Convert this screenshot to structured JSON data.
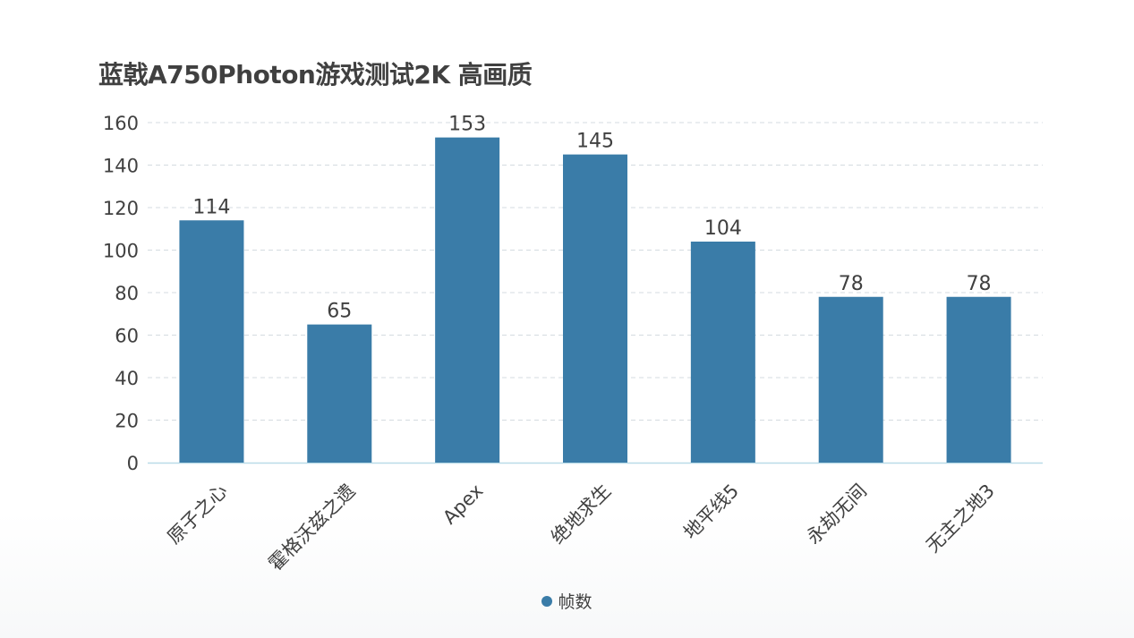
{
  "page": {
    "title": "蓝戟A750Photon游戏测试2K 高画质"
  },
  "chart_data": {
    "type": "bar",
    "title": "蓝戟A750Photon游戏测试2K 高画质",
    "categories": [
      "原子之心",
      "霍格沃兹之遗",
      "Apex",
      "绝地求生",
      "地平线5",
      "永劫无间",
      "无主之地3"
    ],
    "series": [
      {
        "name": "帧数",
        "values": [
          114,
          65,
          153,
          145,
          104,
          78,
          78
        ],
        "color": "#3a7ca8"
      }
    ],
    "ylim": [
      0,
      160
    ],
    "yticks": [
      0,
      20,
      40,
      60,
      80,
      100,
      120,
      140,
      160
    ],
    "grid": true,
    "legend_position": "bottom-center",
    "data_labels": true,
    "xlabel_rotation": "45deg"
  },
  "legend": {
    "label": "帧数",
    "color": "#3a7ca8"
  }
}
